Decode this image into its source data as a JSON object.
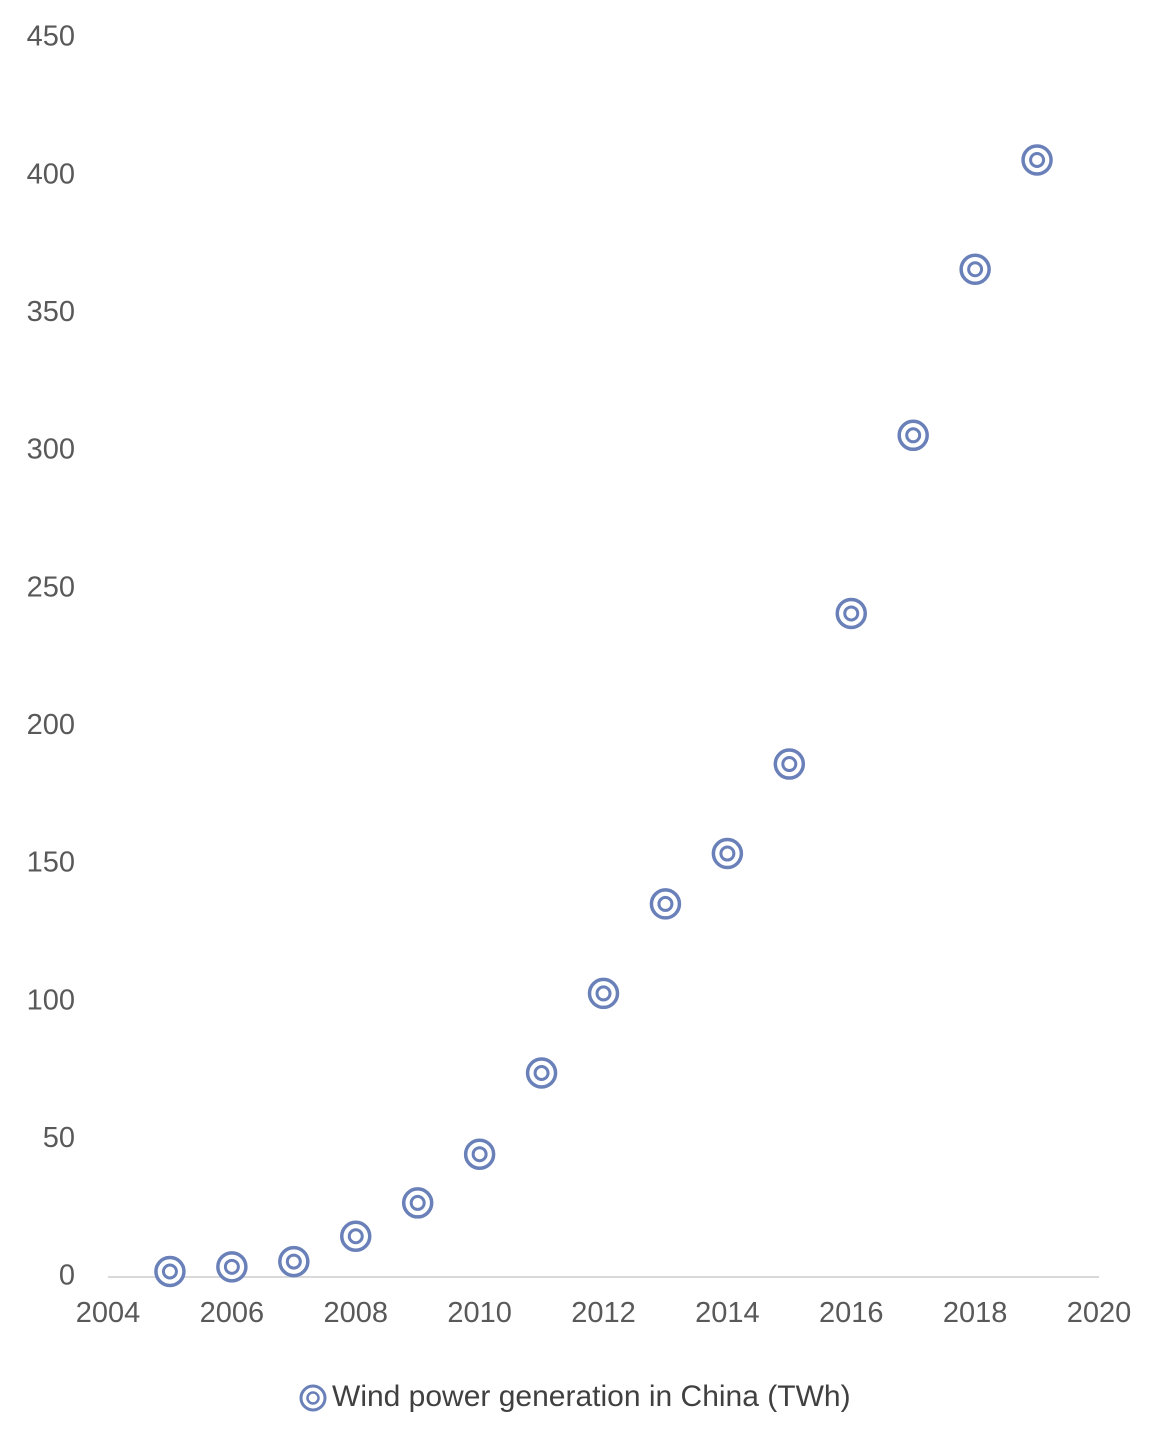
{
  "chart_data": {
    "type": "scatter",
    "title": "",
    "xlabel": "",
    "ylabel": "",
    "xlim": [
      2004,
      2020
    ],
    "ylim": [
      0,
      450
    ],
    "x_ticks": [
      2004,
      2006,
      2008,
      2010,
      2012,
      2014,
      2016,
      2018,
      2020
    ],
    "y_ticks": [
      0,
      50,
      100,
      150,
      200,
      250,
      300,
      350,
      400,
      450
    ],
    "grid": false,
    "legend_position": "bottom",
    "series": [
      {
        "name": "Wind power generation in China (TWh)",
        "marker": "target-circle",
        "color": "#6a80b9",
        "points": [
          {
            "x": 2005,
            "y": 2
          },
          {
            "x": 2006,
            "y": 3.7
          },
          {
            "x": 2007,
            "y": 5.6
          },
          {
            "x": 2008,
            "y": 14.8
          },
          {
            "x": 2009,
            "y": 26.9
          },
          {
            "x": 2010,
            "y": 44.6
          },
          {
            "x": 2011,
            "y": 74.1
          },
          {
            "x": 2012,
            "y": 103
          },
          {
            "x": 2013,
            "y": 135.5
          },
          {
            "x": 2014,
            "y": 153.8
          },
          {
            "x": 2015,
            "y": 186.3
          },
          {
            "x": 2016,
            "y": 241
          },
          {
            "x": 2017,
            "y": 305.7
          },
          {
            "x": 2018,
            "y": 366
          },
          {
            "x": 2019,
            "y": 405.7
          }
        ]
      }
    ]
  },
  "colors": {
    "axis": "#d9d9d9",
    "tick_text": "#595959",
    "legend_text": "#404040"
  }
}
